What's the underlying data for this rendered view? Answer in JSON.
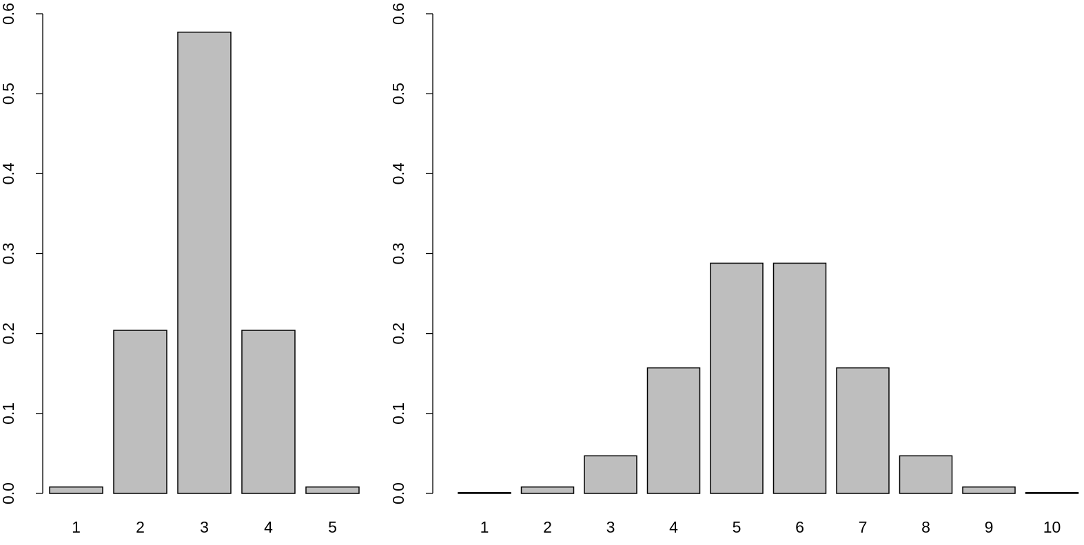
{
  "chart_data": [
    {
      "type": "bar",
      "categories": [
        "1",
        "2",
        "3",
        "4",
        "5"
      ],
      "values": [
        0.008,
        0.204,
        0.577,
        0.204,
        0.008
      ],
      "y_ticks": [
        "0.0",
        "0.1",
        "0.2",
        "0.3",
        "0.4",
        "0.5",
        "0.6"
      ],
      "ylim": [
        0,
        0.6
      ],
      "grid": false,
      "bar_color": "#bebebe",
      "edge_color": "#000000"
    },
    {
      "type": "bar",
      "categories": [
        "1",
        "2",
        "3",
        "4",
        "5",
        "6",
        "7",
        "8",
        "9",
        "10"
      ],
      "values": [
        0.001,
        0.008,
        0.047,
        0.157,
        0.288,
        0.288,
        0.157,
        0.047,
        0.008,
        0.001
      ],
      "y_ticks": [
        "0.0",
        "0.1",
        "0.2",
        "0.3",
        "0.4",
        "0.5",
        "0.6"
      ],
      "ylim": [
        0,
        0.6
      ],
      "grid": false,
      "bar_color": "#bebebe",
      "edge_color": "#000000"
    }
  ]
}
